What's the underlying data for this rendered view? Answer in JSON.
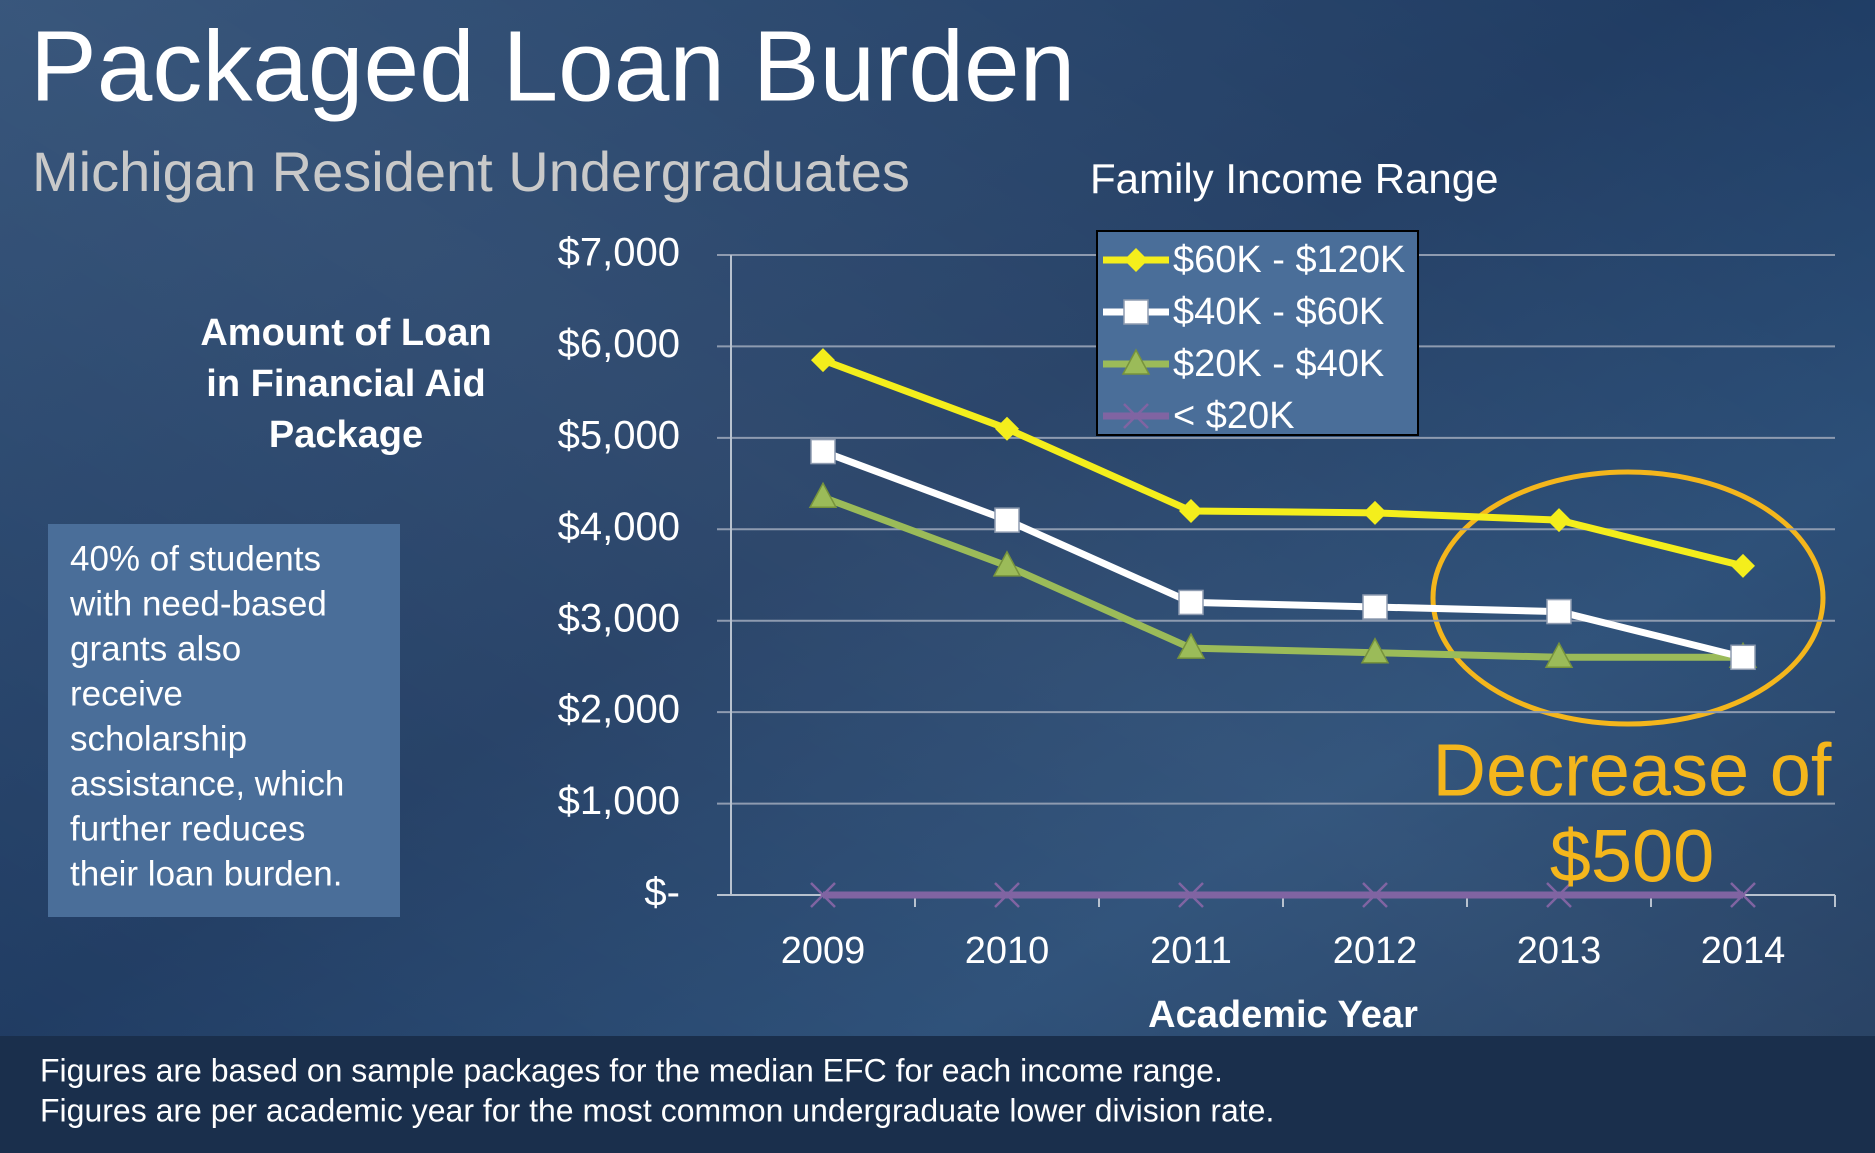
{
  "chart_data": {
    "type": "line",
    "title": "Packaged Loan Burden",
    "subtitle": "Michigan Resident Undergraduates",
    "legend_title": "Family Income Range",
    "y_label_lines": [
      "Amount of Loan",
      "in Financial Aid",
      "Package"
    ],
    "x_label": "Academic Year",
    "note_lines": [
      "40% of students",
      "with need-based",
      "grants also",
      "receive",
      "scholarship",
      "assistance, which",
      "further reduces",
      "their loan burden."
    ],
    "annotation_lines": [
      "Decrease of",
      "$500"
    ],
    "footnotes": [
      "Figures are based on sample packages for the median EFC for each income range.",
      "Figures are per academic year for the most common undergraduate lower division rate."
    ],
    "categories": [
      "2009",
      "2010",
      "2011",
      "2012",
      "2013",
      "2014"
    ],
    "series": [
      {
        "name": "$60K - $120K",
        "color": "#f4ee1c",
        "marker": "diamond",
        "values": [
          5850,
          5100,
          4200,
          4180,
          4100,
          3600
        ]
      },
      {
        "name": "$40K - $60K",
        "color": "#ffffff",
        "marker": "square",
        "values": [
          4850,
          4100,
          3200,
          3150,
          3100,
          2600
        ]
      },
      {
        "name": "$20K - $40K",
        "color": "#9bbb59",
        "marker": "triangle",
        "values": [
          4350,
          3600,
          2700,
          2650,
          2600,
          2600
        ]
      },
      {
        "name": "< $20K",
        "color": "#8064a2",
        "marker": "x",
        "values": [
          0,
          0,
          0,
          0,
          0,
          0
        ]
      }
    ],
    "ylim": [
      0,
      7000
    ],
    "yticks": [
      {
        "value": 0,
        "label": "$-"
      },
      {
        "value": 1000,
        "label": "$1,000"
      },
      {
        "value": 2000,
        "label": "$2,000"
      },
      {
        "value": 3000,
        "label": "$3,000"
      },
      {
        "value": 4000,
        "label": "$4,000"
      },
      {
        "value": 5000,
        "label": "$5,000"
      },
      {
        "value": 6000,
        "label": "$6,000"
      },
      {
        "value": 7000,
        "label": "$7,000"
      }
    ],
    "grid": true,
    "legend_position": "top"
  }
}
